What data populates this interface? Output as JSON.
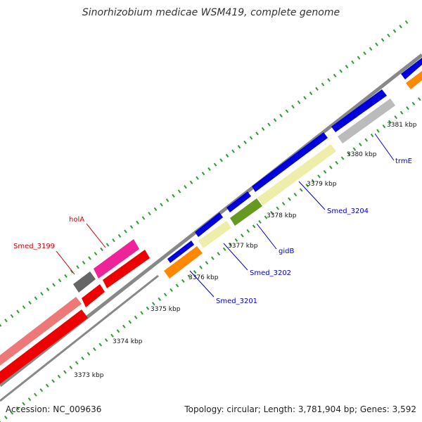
{
  "title": "Sinorhizobium medicae WSM419, complete genome",
  "footer": {
    "accession": "Accession: NC_009636",
    "summary": "Topology: circular; Length: 3,781,904 bp; Genes: 3,592"
  },
  "tick_labels": [
    "3373 kbp",
    "3374 kbp",
    "3375 kbp",
    "3376 kbp",
    "3377 kbp",
    "3378 kbp",
    "3379 kbp",
    "3380 kbp",
    "3381 kbp"
  ],
  "gene_labels": [
    {
      "text": "holA",
      "color": "#cc0000"
    },
    {
      "text": "Smed_3199",
      "color": "#cc0000"
    },
    {
      "text": "Smed_3201",
      "color": "#0000cc"
    },
    {
      "text": "Smed_3202",
      "color": "#0000cc"
    },
    {
      "text": "gidB",
      "color": "#0000cc"
    },
    {
      "text": "Smed_3204",
      "color": "#0000cc"
    },
    {
      "text": "trmE",
      "color": "#0000cc"
    }
  ],
  "colors": {
    "backbone": "#888888",
    "tick": "#339933",
    "forward_blue": "#0000dd",
    "pale_yellow": "#eeeeaa",
    "olive_green": "#669922",
    "orange": "#ff8800",
    "light_gray": "#bbbbbb",
    "dark_gray": "#666666",
    "magenta": "#ee2299",
    "red": "#ee0000",
    "salmon": "#ee7777"
  }
}
